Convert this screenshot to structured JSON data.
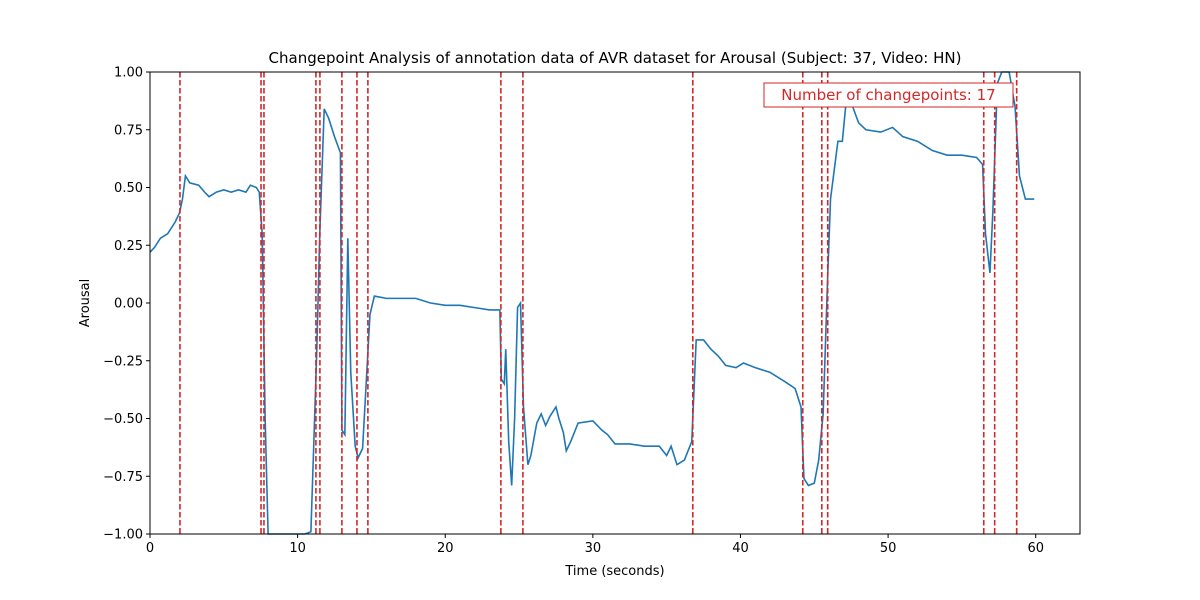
{
  "chart_data": {
    "type": "line",
    "title": "Changepoint Analysis of annotation data of AVR dataset for Arousal (Subject: 37, Video: HN)",
    "x_label": "Time (seconds)",
    "y_label": "Arousal",
    "xlim": [
      0,
      63
    ],
    "xticks": [
      0,
      10,
      20,
      30,
      40,
      50,
      60
    ],
    "ylim": [
      -1,
      1
    ],
    "yticks": [
      {
        "value": -1,
        "label": "−1.00"
      },
      {
        "value": -0.75,
        "label": "−0.75"
      },
      {
        "value": -0.5,
        "label": "−0.50"
      },
      {
        "value": -0.25,
        "label": "−0.25"
      },
      {
        "value": 0,
        "label": "0.00"
      },
      {
        "value": 0.25,
        "label": "0.25"
      },
      {
        "value": 0.5,
        "label": "0.50"
      },
      {
        "value": 0.75,
        "label": "0.75"
      },
      {
        "value": 1,
        "label": "1.00"
      }
    ],
    "series": [
      {
        "color": "#1f77b4",
        "x": [
          0,
          0.3,
          0.7,
          1.2,
          1.7,
          2.0,
          2.2,
          2.4,
          2.7,
          3.3,
          3.7,
          4.0,
          4.5,
          5.0,
          5.5,
          6.0,
          6.5,
          6.8,
          7.2,
          7.4,
          7.6,
          7.8,
          8.0,
          9.0,
          10.5,
          10.9,
          11.1,
          11.3,
          11.5,
          11.8,
          12.1,
          12.5,
          12.9,
          13.0,
          13.2,
          13.4,
          13.6,
          13.9,
          14.1,
          14.4,
          14.6,
          14.9,
          15.2,
          16,
          17,
          18,
          19,
          20,
          21,
          22,
          23,
          23.7,
          23.8,
          24.0,
          24.1,
          24.3,
          24.5,
          24.7,
          24.9,
          25.1,
          25.3,
          25.6,
          25.8,
          26.2,
          26.5,
          26.8,
          27.1,
          27.5,
          27.7,
          28.0,
          28.2,
          28.5,
          29.0,
          30.0,
          30.6,
          31.0,
          31.5,
          32.5,
          33.5,
          34.5,
          35.0,
          35.3,
          35.7,
          36.2,
          36.7,
          37.0,
          37.5,
          38.0,
          38.5,
          39.0,
          39.7,
          40.2,
          41.0,
          42.0,
          43.0,
          43.7,
          44.1,
          44.3,
          44.6,
          45.0,
          45.3,
          45.6,
          45.9,
          46.1,
          46.6,
          46.9,
          47.2,
          47.6,
          48.0,
          48.5,
          49.5,
          50.3,
          51.0,
          52.0,
          53.0,
          54.0,
          55.0,
          56.0,
          56.4,
          56.6,
          56.9,
          57.1,
          57.4,
          57.7,
          58.2,
          58.6,
          58.9,
          59.3,
          59.6,
          59.9
        ],
        "values": [
          0.22,
          0.24,
          0.28,
          0.3,
          0.35,
          0.39,
          0.45,
          0.55,
          0.52,
          0.51,
          0.48,
          0.46,
          0.48,
          0.49,
          0.48,
          0.49,
          0.48,
          0.51,
          0.5,
          0.48,
          0.3,
          -0.5,
          -1.0,
          -1.0,
          -1.0,
          -0.99,
          -0.6,
          -0.2,
          0.3,
          0.84,
          0.8,
          0.72,
          0.65,
          -0.55,
          -0.57,
          0.28,
          -0.3,
          -0.62,
          -0.67,
          -0.63,
          -0.4,
          -0.05,
          0.03,
          0.02,
          0.02,
          0.02,
          0.0,
          -0.01,
          -0.01,
          -0.02,
          -0.03,
          -0.03,
          -0.33,
          -0.35,
          -0.2,
          -0.6,
          -0.79,
          -0.5,
          -0.02,
          0.0,
          -0.45,
          -0.7,
          -0.66,
          -0.52,
          -0.48,
          -0.53,
          -0.49,
          -0.45,
          -0.5,
          -0.56,
          -0.64,
          -0.6,
          -0.52,
          -0.51,
          -0.55,
          -0.57,
          -0.61,
          -0.61,
          -0.62,
          -0.62,
          -0.66,
          -0.62,
          -0.7,
          -0.68,
          -0.6,
          -0.16,
          -0.16,
          -0.2,
          -0.23,
          -0.27,
          -0.28,
          -0.26,
          -0.28,
          -0.3,
          -0.34,
          -0.37,
          -0.45,
          -0.76,
          -0.79,
          -0.78,
          -0.68,
          -0.48,
          0.1,
          0.45,
          0.7,
          0.7,
          0.9,
          0.85,
          0.78,
          0.75,
          0.74,
          0.76,
          0.72,
          0.7,
          0.66,
          0.64,
          0.64,
          0.63,
          0.6,
          0.3,
          0.13,
          0.4,
          0.95,
          1.0,
          1.0,
          0.85,
          0.55,
          0.45,
          0.45,
          0.45
        ]
      }
    ],
    "changepoints": [
      2.03,
      7.52,
      7.72,
      11.24,
      11.51,
      13.0,
      14.02,
      14.76,
      23.77,
      25.26,
      36.77,
      44.22,
      45.51,
      45.91,
      56.48,
      57.22,
      58.71
    ],
    "changepoint_color": "#d62728",
    "annotation": "Number of changepoints: 17"
  }
}
